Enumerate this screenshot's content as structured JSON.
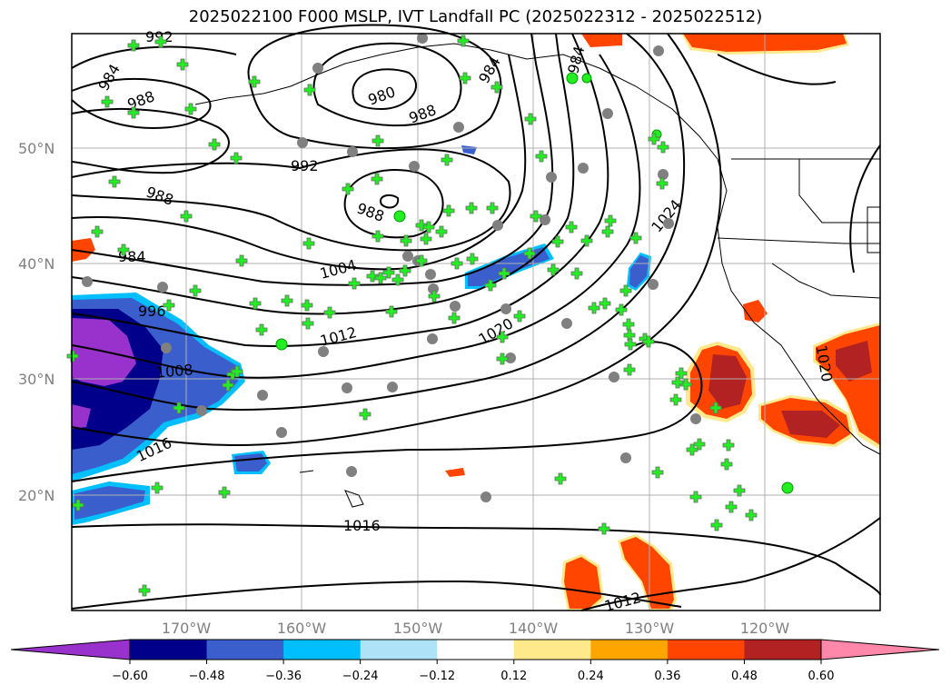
{
  "title": "2025022100 F000 MSLP, IVT Landfall PC (2025022312 - 2025022512)",
  "lat_labels": [
    "50°N",
    "40°N",
    "30°N",
    "20°N"
  ],
  "lon_labels": [
    "170°W",
    "160°W",
    "150°W",
    "140°W",
    "130°W",
    "120°W"
  ],
  "contour_labels": [
    "992",
    "984",
    "988",
    "980",
    "988",
    "984",
    "984",
    "992",
    "988",
    "984",
    "988",
    "1004",
    "996",
    "1012",
    "1020",
    "1008",
    "1024",
    "1016",
    "1016",
    "1012",
    "1020"
  ],
  "colorbar": {
    "ticks": [
      "−0.60",
      "−0.48",
      "−0.36",
      "−0.24",
      "−0.12",
      "0.12",
      "0.24",
      "0.36",
      "0.48",
      "0.60"
    ],
    "colors": [
      "#9932CC",
      "#00008B",
      "#3A5FCD",
      "#00BFFF",
      "#ADE2F7",
      "#FFFFFF",
      "#FFE98A",
      "#FFA500",
      "#FF4500",
      "#B22222",
      "#FF88AA"
    ]
  },
  "colors": {
    "land_pos_light": "#FFE98A",
    "pos_mid": "#FF4500",
    "pos_high": "#B22222",
    "neg_dark": "#00008B",
    "neg_mid": "#3A5FCD",
    "neg_light": "#00BFFF",
    "neg_extreme": "#9932CC",
    "marker_green": "#22EE22",
    "marker_gray": "#808080"
  }
}
